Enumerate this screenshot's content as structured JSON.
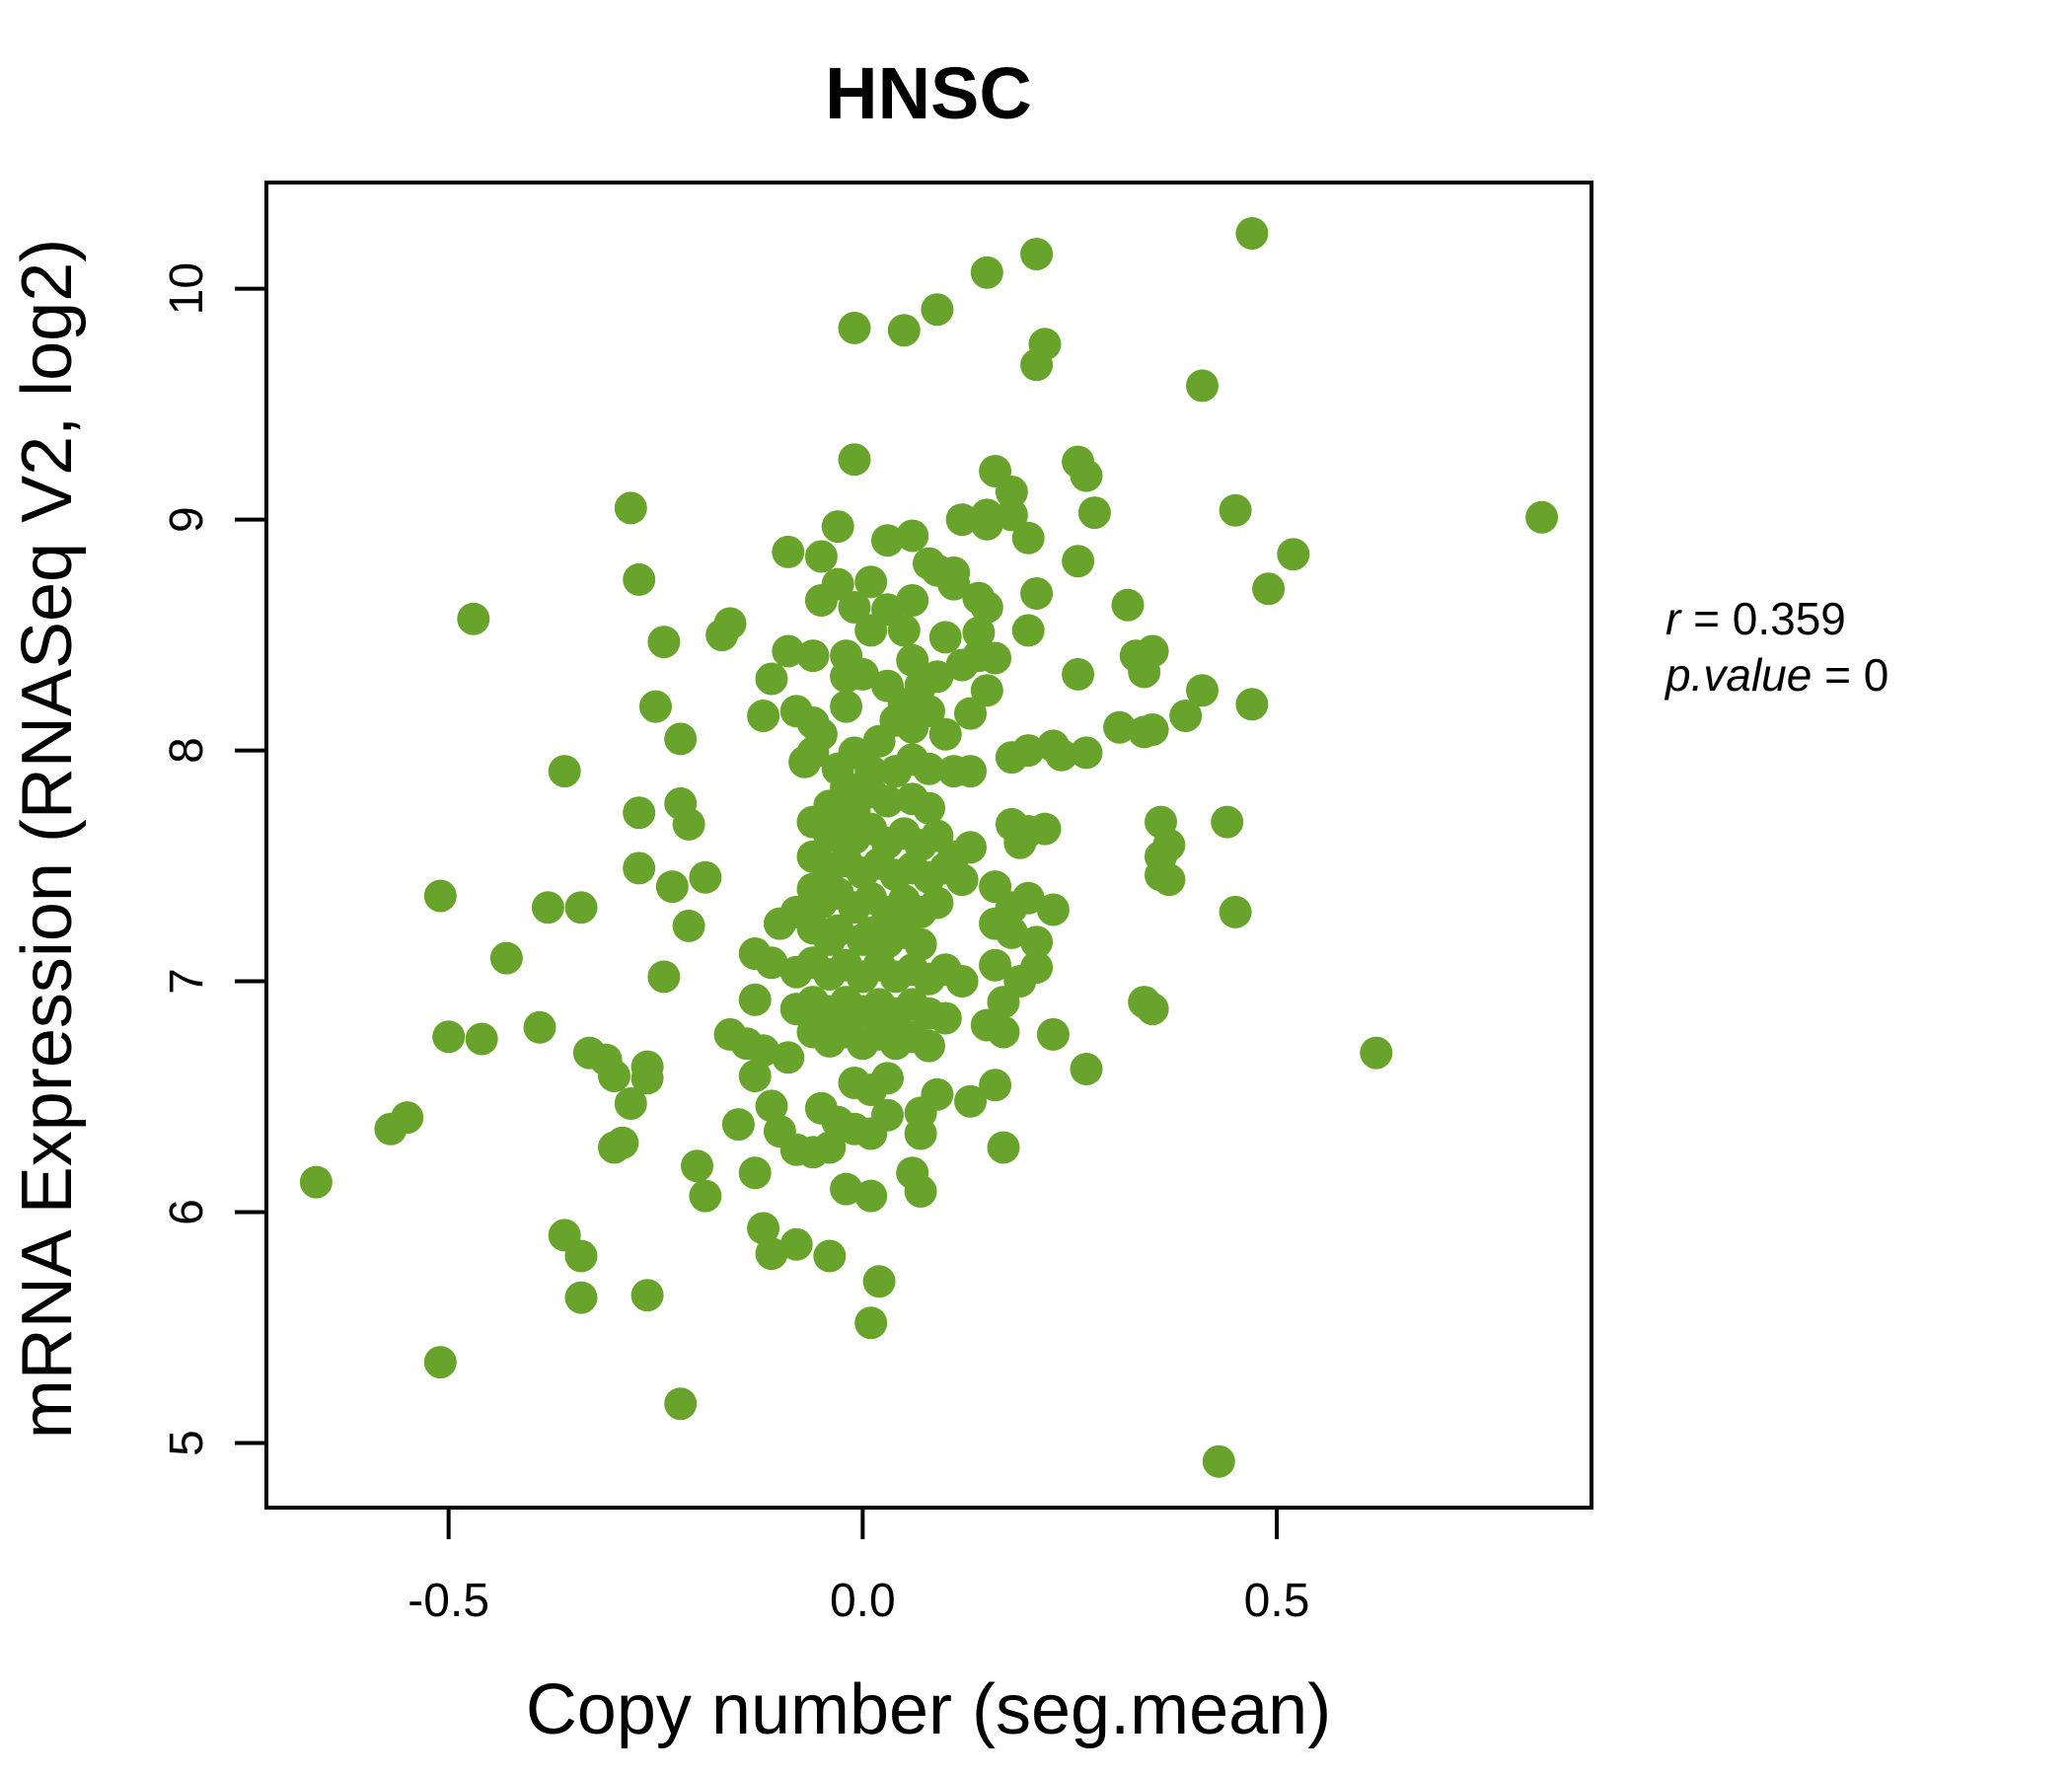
{
  "figure": {
    "accent_color": "#68A42B"
  },
  "chart_data": {
    "type": "scatter",
    "title": "HNSC",
    "xlabel": "Copy number (seg.mean)",
    "ylabel": "mRNA Expression (RNASeq V2, log2)",
    "xlim": [
      -0.72,
      0.88
    ],
    "ylim": [
      4.72,
      10.46
    ],
    "grid": false,
    "legend": "none",
    "point_color": "#68A42B",
    "point_radius": 16.5,
    "title_color": "#68A42B",
    "x_ticks": [
      {
        "value": -0.5,
        "label": "-0.5"
      },
      {
        "value": 0.0,
        "label": "0.0"
      },
      {
        "value": 0.5,
        "label": "0.5"
      }
    ],
    "y_ticks": [
      {
        "value": 5,
        "label": "5"
      },
      {
        "value": 6,
        "label": "6"
      },
      {
        "value": 7,
        "label": "7"
      },
      {
        "value": 8,
        "label": "8"
      },
      {
        "value": 9,
        "label": "9"
      },
      {
        "value": 10,
        "label": "10"
      }
    ],
    "correlation": {
      "r_label": "r",
      "r": "0.359",
      "p_label": "p.value",
      "p": "0"
    },
    "points": [
      [
        0.47,
        10.24
      ],
      [
        0.21,
        10.15
      ],
      [
        0.15,
        10.07
      ],
      [
        0.09,
        9.91
      ],
      [
        -0.01,
        9.83
      ],
      [
        0.05,
        9.82
      ],
      [
        0.22,
        9.76
      ],
      [
        0.21,
        9.67
      ],
      [
        0.41,
        9.58
      ],
      [
        -0.01,
        9.26
      ],
      [
        0.26,
        9.25
      ],
      [
        0.16,
        9.21
      ],
      [
        0.27,
        9.19
      ],
      [
        0.18,
        9.12
      ],
      [
        0.45,
        9.04
      ],
      [
        0.82,
        9.01
      ],
      [
        -0.28,
        9.05
      ],
      [
        0.15,
        9.02
      ],
      [
        0.28,
        9.03
      ],
      [
        0.12,
        9.0
      ],
      [
        0.15,
        8.98
      ],
      [
        0.18,
        9.02
      ],
      [
        -0.03,
        8.97
      ],
      [
        0.2,
        8.92
      ],
      [
        -0.09,
        8.86
      ],
      [
        -0.05,
        8.84
      ],
      [
        0.26,
        8.82
      ],
      [
        0.03,
        8.91
      ],
      [
        0.06,
        8.93
      ],
      [
        0.52,
        8.85
      ],
      [
        -0.27,
        8.74
      ],
      [
        -0.03,
        8.72
      ],
      [
        0.01,
        8.73
      ],
      [
        0.08,
        8.81
      ],
      [
        0.09,
        8.78
      ],
      [
        0.11,
        8.77
      ],
      [
        0.49,
        8.7
      ],
      [
        -0.05,
        8.65
      ],
      [
        -0.01,
        8.62
      ],
      [
        0.03,
        8.61
      ],
      [
        0.06,
        8.65
      ],
      [
        0.11,
        8.72
      ],
      [
        0.14,
        8.66
      ],
      [
        0.15,
        8.62
      ],
      [
        0.21,
        8.68
      ],
      [
        0.32,
        8.63
      ],
      [
        -0.47,
        8.57
      ],
      [
        -0.16,
        8.55
      ],
      [
        -0.24,
        8.47
      ],
      [
        -0.25,
        8.19
      ],
      [
        -0.22,
        8.05
      ],
      [
        -0.36,
        7.91
      ],
      [
        -0.27,
        7.73
      ],
      [
        -0.22,
        7.77
      ],
      [
        -0.21,
        7.68
      ],
      [
        -0.27,
        7.49
      ],
      [
        -0.23,
        7.41
      ],
      [
        -0.19,
        7.45
      ],
      [
        -0.51,
        7.37
      ],
      [
        -0.38,
        7.32
      ],
      [
        -0.34,
        7.32
      ],
      [
        -0.21,
        7.24
      ],
      [
        -0.43,
        7.1
      ],
      [
        -0.24,
        7.02
      ],
      [
        -0.39,
        6.8
      ],
      [
        -0.5,
        6.76
      ],
      [
        -0.46,
        6.75
      ],
      [
        -0.33,
        6.69
      ],
      [
        -0.31,
        6.66
      ],
      [
        -0.26,
        6.63
      ],
      [
        0.35,
        8.43
      ],
      [
        0.41,
        8.26
      ],
      [
        0.39,
        8.15
      ],
      [
        0.47,
        8.2
      ],
      [
        0.35,
        8.09
      ],
      [
        0.36,
        7.69
      ],
      [
        0.44,
        7.69
      ],
      [
        0.37,
        7.59
      ],
      [
        0.36,
        7.54
      ],
      [
        0.36,
        7.46
      ],
      [
        0.37,
        7.44
      ],
      [
        0.45,
        7.3
      ],
      [
        0.35,
        6.88
      ],
      [
        0.62,
        6.69
      ],
      [
        -0.57,
        6.36
      ],
      [
        -0.55,
        6.41
      ],
      [
        -0.66,
        6.13
      ],
      [
        -0.3,
        6.59
      ],
      [
        -0.26,
        6.58
      ],
      [
        -0.28,
        6.47
      ],
      [
        -0.3,
        6.28
      ],
      [
        -0.29,
        6.3
      ],
      [
        -0.2,
        6.2
      ],
      [
        -0.19,
        6.07
      ],
      [
        -0.36,
        5.9
      ],
      [
        -0.34,
        5.81
      ],
      [
        -0.34,
        5.63
      ],
      [
        -0.26,
        5.64
      ],
      [
        -0.51,
        5.35
      ],
      [
        -0.22,
        5.17
      ],
      [
        -0.13,
        6.59
      ],
      [
        -0.15,
        6.38
      ],
      [
        -0.11,
        6.46
      ],
      [
        -0.05,
        6.45
      ],
      [
        -0.01,
        6.56
      ],
      [
        0.01,
        6.53
      ],
      [
        0.03,
        6.58
      ],
      [
        0.09,
        6.51
      ],
      [
        0.13,
        6.48
      ],
      [
        0.16,
        6.55
      ],
      [
        0.27,
        6.62
      ],
      [
        -0.1,
        6.35
      ],
      [
        -0.08,
        6.27
      ],
      [
        -0.06,
        6.26
      ],
      [
        -0.04,
        6.28
      ],
      [
        -0.03,
        6.39
      ],
      [
        -0.01,
        6.36
      ],
      [
        0.01,
        6.34
      ],
      [
        0.03,
        6.42
      ],
      [
        0.07,
        6.34
      ],
      [
        0.07,
        6.43
      ],
      [
        0.17,
        6.28
      ],
      [
        -0.13,
        6.17
      ],
      [
        -0.02,
        6.1
      ],
      [
        0.01,
        6.07
      ],
      [
        0.06,
        6.17
      ],
      [
        0.07,
        6.09
      ],
      [
        -0.12,
        5.93
      ],
      [
        -0.11,
        5.82
      ],
      [
        -0.08,
        5.86
      ],
      [
        -0.04,
        5.81
      ],
      [
        0.02,
        5.7
      ],
      [
        0.01,
        5.52
      ],
      [
        0.43,
        4.92
      ],
      [
        -0.17,
        8.5
      ],
      [
        -0.09,
        8.43
      ],
      [
        -0.06,
        8.41
      ],
      [
        -0.02,
        8.41
      ],
      [
        0.01,
        8.52
      ],
      [
        0.05,
        8.52
      ],
      [
        0.06,
        8.39
      ],
      [
        0.1,
        8.49
      ],
      [
        0.14,
        8.51
      ],
      [
        0.16,
        8.4
      ],
      [
        0.2,
        8.52
      ],
      [
        0.26,
        8.33
      ],
      [
        0.33,
        8.41
      ],
      [
        0.34,
        8.34
      ],
      [
        -0.11,
        8.31
      ],
      [
        -0.08,
        8.17
      ],
      [
        -0.02,
        8.32
      ],
      [
        0.0,
        8.33
      ],
      [
        0.03,
        8.28
      ],
      [
        0.05,
        8.2
      ],
      [
        0.07,
        8.28
      ],
      [
        0.09,
        8.32
      ],
      [
        0.12,
        8.37
      ],
      [
        0.14,
        8.41
      ],
      [
        0.15,
        8.26
      ],
      [
        -0.12,
        8.15
      ],
      [
        -0.06,
        8.12
      ],
      [
        -0.05,
        8.07
      ],
      [
        -0.02,
        8.19
      ],
      [
        0.04,
        8.13
      ],
      [
        0.06,
        8.1
      ],
      [
        0.08,
        8.17
      ],
      [
        0.1,
        8.07
      ],
      [
        0.13,
        8.16
      ],
      [
        0.18,
        7.97
      ],
      [
        0.2,
        8.0
      ],
      [
        0.23,
        8.02
      ],
      [
        0.24,
        7.98
      ],
      [
        0.27,
        7.99
      ],
      [
        0.31,
        8.1
      ],
      [
        0.34,
        8.08
      ],
      [
        -0.07,
        7.95
      ],
      [
        -0.06,
        7.99
      ],
      [
        -0.03,
        7.92
      ],
      [
        -0.01,
        7.99
      ],
      [
        0.01,
        7.91
      ],
      [
        0.02,
        8.04
      ],
      [
        0.04,
        7.91
      ],
      [
        0.06,
        7.96
      ],
      [
        0.08,
        7.92
      ],
      [
        0.11,
        7.91
      ],
      [
        0.13,
        7.91
      ],
      [
        -0.02,
        7.84
      ],
      [
        0.01,
        7.82
      ],
      [
        0.03,
        7.78
      ],
      [
        0.06,
        7.79
      ],
      [
        0.08,
        7.75
      ],
      [
        -0.01,
        7.74
      ],
      [
        -0.04,
        7.76
      ],
      [
        0.18,
        7.68
      ],
      [
        0.2,
        7.65
      ],
      [
        0.22,
        7.66
      ],
      [
        0.19,
        7.6
      ],
      [
        -0.06,
        7.69
      ],
      [
        -0.04,
        7.63
      ],
      [
        -0.03,
        7.67
      ],
      [
        -0.01,
        7.62
      ],
      [
        0.01,
        7.66
      ],
      [
        0.03,
        7.6
      ],
      [
        0.05,
        7.64
      ],
      [
        0.07,
        7.59
      ],
      [
        0.09,
        7.63
      ],
      [
        0.11,
        7.54
      ],
      [
        0.13,
        7.58
      ],
      [
        -0.06,
        7.54
      ],
      [
        -0.04,
        7.49
      ],
      [
        -0.02,
        7.52
      ],
      [
        0.0,
        7.47
      ],
      [
        0.02,
        7.51
      ],
      [
        0.04,
        7.46
      ],
      [
        0.06,
        7.49
      ],
      [
        0.08,
        7.45
      ],
      [
        0.1,
        7.49
      ],
      [
        0.12,
        7.44
      ],
      [
        0.16,
        7.41
      ],
      [
        0.18,
        7.32
      ],
      [
        0.2,
        7.36
      ],
      [
        0.23,
        7.31
      ],
      [
        -0.06,
        7.4
      ],
      [
        -0.05,
        7.34
      ],
      [
        -0.03,
        7.38
      ],
      [
        -0.01,
        7.32
      ],
      [
        0.01,
        7.36
      ],
      [
        0.03,
        7.3
      ],
      [
        0.05,
        7.35
      ],
      [
        0.07,
        7.3
      ],
      [
        0.09,
        7.34
      ],
      [
        -0.08,
        7.3
      ],
      [
        -0.1,
        7.25
      ],
      [
        -0.06,
        7.23
      ],
      [
        -0.04,
        7.18
      ],
      [
        -0.03,
        7.22
      ],
      [
        0.0,
        7.18
      ],
      [
        0.01,
        7.21
      ],
      [
        0.03,
        7.17
      ],
      [
        0.05,
        7.21
      ],
      [
        0.07,
        7.16
      ],
      [
        0.16,
        7.25
      ],
      [
        0.18,
        7.21
      ],
      [
        0.21,
        7.17
      ],
      [
        -0.13,
        7.12
      ],
      [
        -0.11,
        7.08
      ],
      [
        -0.08,
        7.04
      ],
      [
        -0.06,
        7.08
      ],
      [
        -0.04,
        7.03
      ],
      [
        -0.02,
        7.07
      ],
      [
        0.0,
        7.02
      ],
      [
        0.02,
        7.07
      ],
      [
        0.04,
        7.02
      ],
      [
        0.06,
        7.05
      ],
      [
        0.08,
        7.01
      ],
      [
        0.1,
        7.05
      ],
      [
        0.12,
        7.0
      ],
      [
        0.16,
        7.07
      ],
      [
        0.19,
        7.0
      ],
      [
        0.21,
        7.06
      ],
      [
        -0.13,
        6.92
      ],
      [
        -0.08,
        6.88
      ],
      [
        -0.06,
        6.91
      ],
      [
        -0.04,
        6.87
      ],
      [
        -0.02,
        6.91
      ],
      [
        0.0,
        6.87
      ],
      [
        0.02,
        6.9
      ],
      [
        0.04,
        6.86
      ],
      [
        0.06,
        6.9
      ],
      [
        0.08,
        6.86
      ],
      [
        0.17,
        6.91
      ],
      [
        -0.16,
        6.77
      ],
      [
        -0.14,
        6.73
      ],
      [
        -0.12,
        6.7
      ],
      [
        -0.09,
        6.67
      ],
      [
        -0.06,
        6.78
      ],
      [
        -0.04,
        6.74
      ],
      [
        -0.02,
        6.78
      ],
      [
        0.0,
        6.73
      ],
      [
        0.02,
        6.77
      ],
      [
        0.04,
        6.73
      ],
      [
        0.06,
        6.76
      ],
      [
        0.08,
        6.72
      ],
      [
        0.1,
        6.84
      ],
      [
        0.15,
        6.81
      ],
      [
        0.17,
        6.78
      ],
      [
        0.23,
        6.77
      ],
      [
        0.34,
        6.91
      ]
    ]
  }
}
